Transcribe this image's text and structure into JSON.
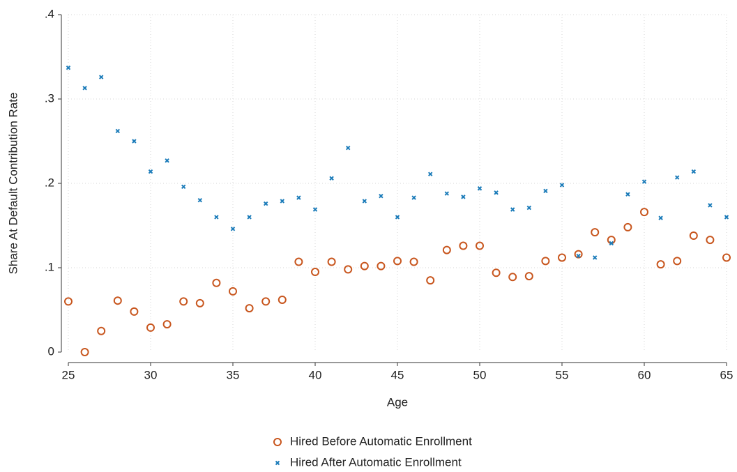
{
  "chart_data": {
    "type": "scatter",
    "x_label": "Age",
    "y_label": "Share At Default Contribution Rate",
    "x": [
      25,
      26,
      27,
      28,
      29,
      30,
      31,
      32,
      33,
      34,
      35,
      36,
      37,
      38,
      39,
      40,
      41,
      42,
      43,
      44,
      45,
      46,
      47,
      48,
      49,
      50,
      51,
      52,
      53,
      54,
      55,
      56,
      57,
      58,
      59,
      60,
      61,
      62,
      63,
      64,
      65
    ],
    "series": [
      {
        "name": "Hired Before Automatic Enrollment",
        "color": "#c8561e",
        "marker": "circle",
        "values": [
          0.06,
          0.0,
          0.025,
          0.061,
          0.048,
          0.029,
          0.033,
          0.06,
          0.058,
          0.082,
          0.072,
          0.052,
          0.06,
          0.062,
          0.107,
          0.095,
          0.107,
          0.098,
          0.102,
          0.102,
          0.108,
          0.107,
          0.085,
          0.121,
          0.126,
          0.126,
          0.094,
          0.089,
          0.09,
          0.108,
          0.112,
          0.116,
          0.142,
          0.133,
          0.148,
          0.166,
          0.104,
          0.108,
          0.138,
          0.133,
          0.112
        ]
      },
      {
        "name": "Hired After Automatic Enrollment",
        "color": "#1a7bb9",
        "marker": "x",
        "values": [
          0.337,
          0.313,
          0.326,
          0.262,
          0.25,
          0.214,
          0.227,
          0.196,
          0.18,
          0.16,
          0.146,
          0.16,
          0.176,
          0.179,
          0.183,
          0.169,
          0.206,
          0.242,
          0.179,
          0.185,
          0.16,
          0.183,
          0.211,
          0.188,
          0.184,
          0.194,
          0.189,
          0.169,
          0.171,
          0.191,
          0.198,
          0.114,
          0.112,
          0.129,
          0.187,
          0.202,
          0.159,
          0.207,
          0.214,
          0.174,
          0.16
        ]
      }
    ],
    "xlim": [
      25,
      65
    ],
    "xticks": [
      25,
      30,
      35,
      40,
      45,
      50,
      55,
      60,
      65
    ],
    "ylim": [
      0,
      0.4
    ],
    "yticks": [
      0,
      {
        "value": 0.1,
        "label": ".1"
      },
      {
        "value": 0.2,
        "label": ".2"
      },
      {
        "value": 0.3,
        "label": ".3"
      },
      {
        "value": 0.4,
        "label": ".4"
      }
    ],
    "grid": true,
    "legend_position": "bottom"
  }
}
